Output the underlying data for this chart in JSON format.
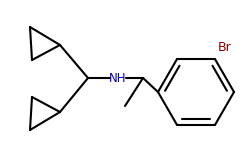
{
  "background_color": "#ffffff",
  "line_color": "#000000",
  "NH_color": "#0000cd",
  "Br_color": "#8b0000",
  "line_width": 1.5,
  "figsize": [
    2.51,
    1.57
  ],
  "dpi": 100,
  "xlim": [
    0,
    251
  ],
  "ylim": [
    0,
    157
  ]
}
